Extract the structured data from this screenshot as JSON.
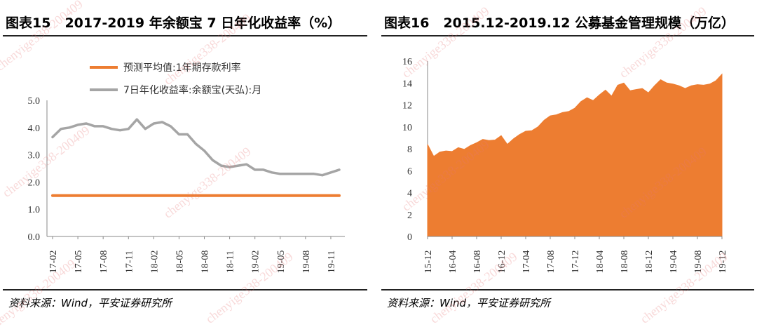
{
  "left": {
    "figure_no": "图表15",
    "title": "2017-2019 年余额宝 7 日年化收益率（%）",
    "source": "资料来源：Wind，平安证券研究所"
  },
  "right": {
    "figure_no": "图表16",
    "title": "2015.12-2019.12 公募基金管理规模（万亿）",
    "source": "资料来源：Wind，平安证券研究所"
  },
  "watermark": "chenyige338-200409",
  "chart_data": [
    {
      "type": "line",
      "title": "2017-2019 年余额宝 7 日年化收益率（%）",
      "ylim": [
        0,
        5
      ],
      "yticks": [
        "0.0",
        "1.0",
        "2.0",
        "3.0",
        "4.0",
        "5.0"
      ],
      "categories": [
        "17-02",
        "17-05",
        "17-08",
        "17-11",
        "18-02",
        "18-05",
        "18-08",
        "18-11",
        "19-02",
        "19-05",
        "19-08",
        "19-11"
      ],
      "legend_position": "top",
      "series": [
        {
          "name": "预测平均值:1年期存款利率",
          "color": "#ED7D31",
          "x": [
            0,
            34
          ],
          "values": [
            1.5,
            1.5
          ]
        },
        {
          "name": "7日年化收益率:余额宝(天弘):月",
          "color": "#A5A5A5",
          "x": [
            0,
            1,
            2,
            3,
            4,
            5,
            6,
            7,
            8,
            9,
            10,
            11,
            12,
            13,
            14,
            15,
            16,
            17,
            18,
            19,
            20,
            21,
            22,
            23,
            24,
            25,
            26,
            27,
            28,
            29,
            30,
            31,
            32,
            33,
            34
          ],
          "values": [
            3.65,
            3.95,
            4.0,
            4.1,
            4.15,
            4.05,
            4.05,
            3.95,
            3.9,
            3.95,
            4.3,
            3.95,
            4.15,
            4.2,
            4.05,
            3.75,
            3.75,
            3.4,
            3.15,
            2.8,
            2.6,
            2.55,
            2.6,
            2.65,
            2.45,
            2.45,
            2.35,
            2.3,
            2.3,
            2.3,
            2.3,
            2.3,
            2.25,
            2.35,
            2.45
          ]
        }
      ]
    },
    {
      "type": "area",
      "title": "2015.12-2019.12 公募基金管理规模（万亿）",
      "ylim": [
        0,
        16
      ],
      "yticks": [
        "0",
        "2",
        "4",
        "6",
        "8",
        "10",
        "12",
        "14",
        "16"
      ],
      "categories": [
        "15-12",
        "16-04",
        "16-08",
        "16-12",
        "17-04",
        "17-08",
        "17-12",
        "18-04",
        "18-08",
        "18-12",
        "19-04",
        "19-08",
        "19-12"
      ],
      "series": [
        {
          "color": "#ED7D31",
          "x": [
            0,
            1,
            2,
            3,
            4,
            5,
            6,
            7,
            8,
            9,
            10,
            11,
            12,
            13,
            14,
            15,
            16,
            17,
            18,
            19,
            20,
            21,
            22,
            23,
            24,
            25,
            26,
            27,
            28,
            29,
            30,
            31,
            32,
            33,
            34,
            35,
            36,
            37,
            38,
            39,
            40,
            41,
            42,
            43,
            44,
            45,
            46,
            47,
            48
          ],
          "values": [
            8.4,
            7.3,
            7.7,
            7.8,
            7.75,
            8.1,
            7.95,
            8.3,
            8.55,
            8.85,
            8.75,
            8.8,
            9.2,
            8.4,
            8.9,
            9.3,
            9.6,
            9.65,
            10.0,
            10.6,
            11.0,
            11.1,
            11.3,
            11.4,
            11.7,
            12.3,
            12.65,
            12.4,
            12.9,
            13.35,
            12.8,
            13.8,
            14.0,
            13.3,
            13.4,
            13.5,
            13.1,
            13.75,
            14.3,
            14.0,
            13.9,
            13.75,
            13.5,
            13.75,
            13.85,
            13.8,
            13.9,
            14.2,
            14.8
          ]
        }
      ]
    }
  ]
}
